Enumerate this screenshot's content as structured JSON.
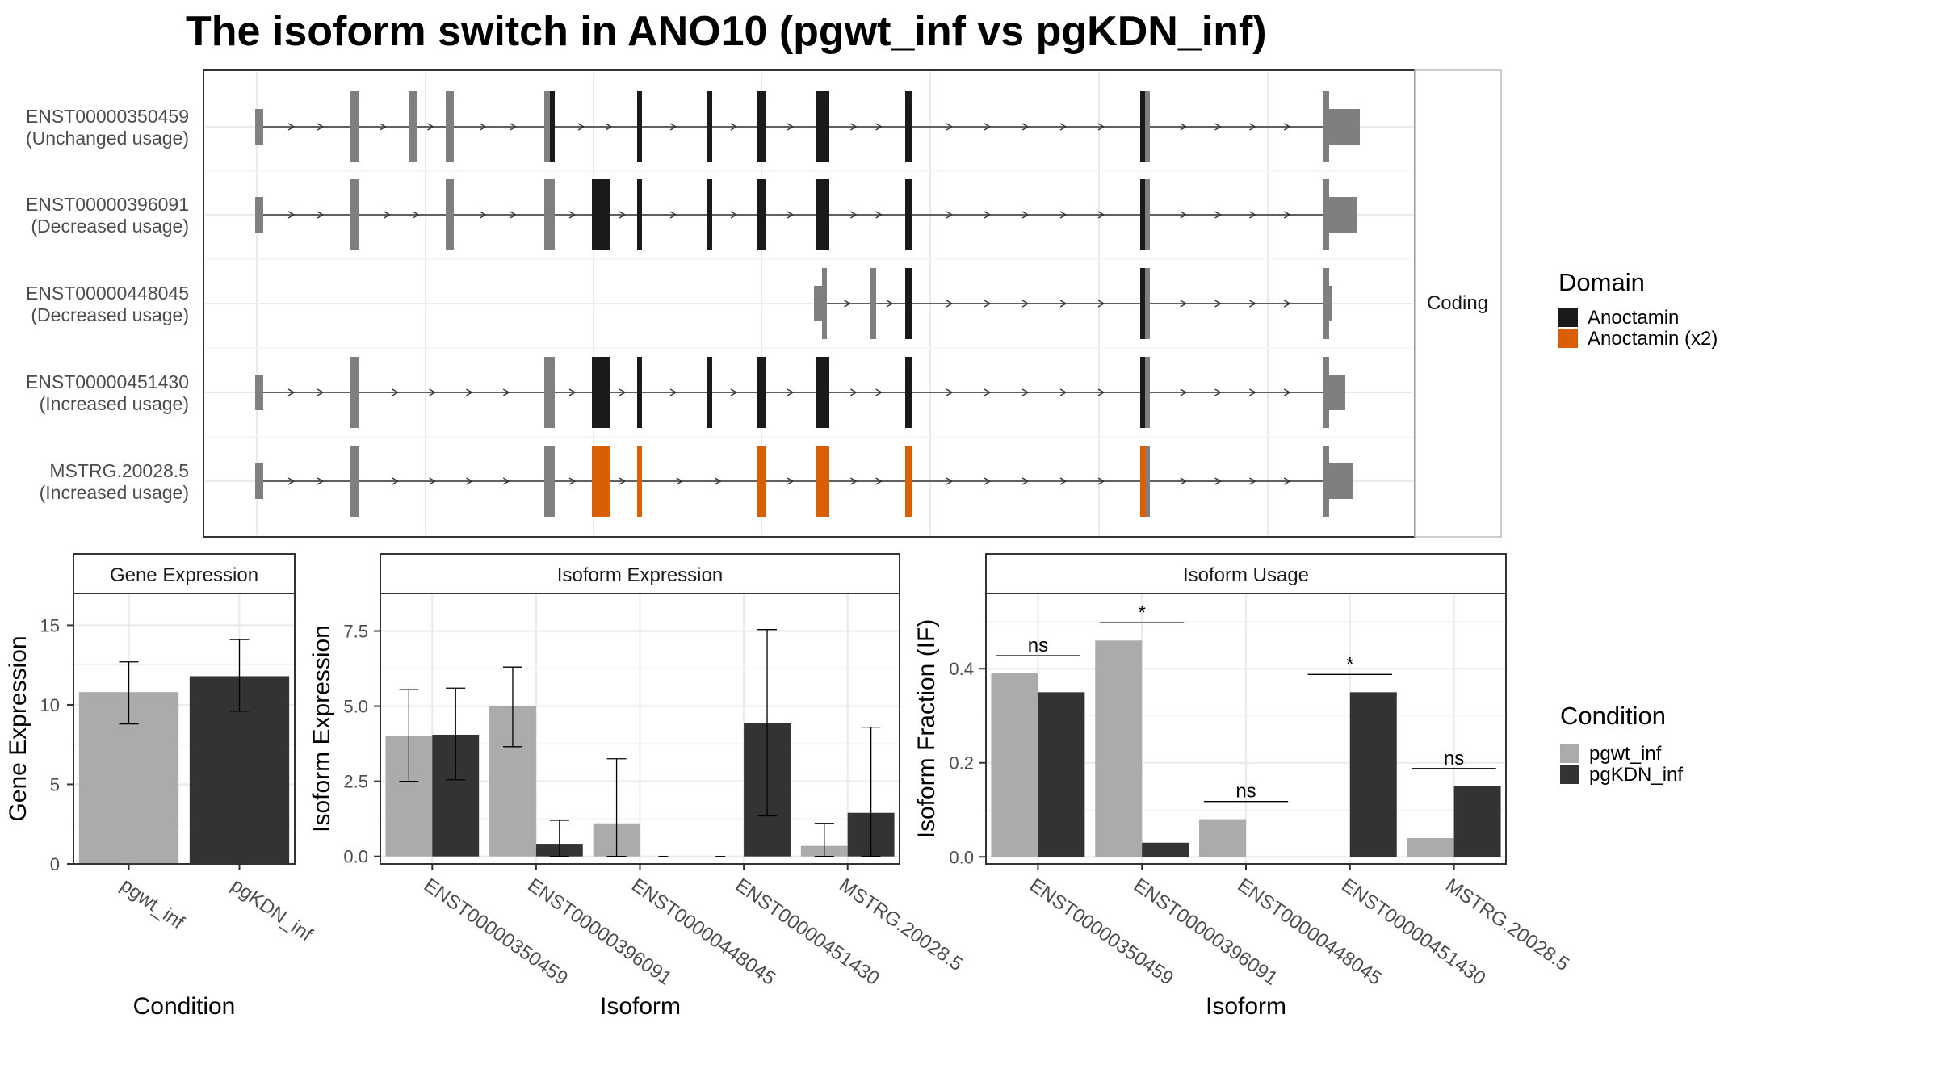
{
  "title": "The isoform switch in ANO10 (pgwt_inf vs pgKDN_inf)",
  "colors": {
    "anoctamin": "#1a1a1a",
    "anoctamin_x2": "#d95f02",
    "utr_grey": "#7f7f7f",
    "pgwt_inf": "#ababab",
    "pgKDN_inf": "#333333",
    "panel_border": "#333333",
    "strip_fill": "#ffffff",
    "grid": "#ebebeb"
  },
  "structure": {
    "strip_label": "Coding",
    "legend_title": "Domain",
    "legend_items": [
      {
        "label": "Anoctamin",
        "color": "#1a1a1a"
      },
      {
        "label": "Anoctamin (x2)",
        "color": "#d95f02"
      }
    ],
    "isoforms": [
      {
        "id": "ENST00000350459",
        "status": "(Unchanged usage)"
      },
      {
        "id": "ENST00000396091",
        "status": "(Decreased usage)"
      },
      {
        "id": "ENST00000448045",
        "status": "(Decreased usage)"
      },
      {
        "id": "ENST00000451430",
        "status": "(Increased usage)"
      },
      {
        "id": "MSTRG.20028.5",
        "status": "(Increased usage)"
      }
    ]
  },
  "condition_legend": {
    "title": "Condition",
    "items": [
      {
        "label": "pgwt_inf",
        "color": "#ababab"
      },
      {
        "label": "pgKDN_inf",
        "color": "#333333"
      }
    ]
  },
  "chart_data": [
    {
      "type": "bar",
      "strip": "Gene Expression",
      "xlabel": "Condition",
      "ylabel": "Gene Expression",
      "categories": [
        "pgwt_inf",
        "pgKDN_inf"
      ],
      "values": [
        10.8,
        11.8
      ],
      "error_low": [
        8.8,
        9.6
      ],
      "error_high": [
        12.7,
        14.1
      ],
      "ylim": [
        0,
        17
      ],
      "yticks": [
        0,
        5,
        10,
        15
      ],
      "ytick_labels": [
        "0",
        "5",
        "10",
        "15"
      ]
    },
    {
      "type": "bar",
      "strip": "Isoform Expression",
      "xlabel": "Isoform",
      "ylabel": "Isoform Expression",
      "categories": [
        "ENST00000350459",
        "ENST00000396091",
        "ENST00000448045",
        "ENST00000451430",
        "MSTRG.20028.5"
      ],
      "series": [
        {
          "name": "pgwt_inf",
          "values": [
            4.0,
            5.0,
            1.1,
            0.0,
            0.35
          ],
          "error_low": [
            2.5,
            3.65,
            0.0,
            0.0,
            0.0
          ],
          "error_high": [
            5.55,
            6.3,
            3.25,
            0.0,
            1.1
          ]
        },
        {
          "name": "pgKDN_inf",
          "values": [
            4.05,
            0.42,
            0.0,
            4.45,
            1.45
          ],
          "error_low": [
            2.55,
            0.0,
            0.0,
            1.35,
            0.0
          ],
          "error_high": [
            5.6,
            1.2,
            0.0,
            7.55,
            4.3
          ]
        }
      ],
      "ylim": [
        -0.25,
        8.75
      ],
      "yticks": [
        0,
        2.5,
        5,
        7.5
      ],
      "ytick_labels": [
        "0.0",
        "2.5",
        "5.0",
        "7.5"
      ]
    },
    {
      "type": "bar",
      "strip": "Isoform Usage",
      "xlabel": "Isoform",
      "ylabel": "Isoform Fraction (IF)",
      "categories": [
        "ENST00000350459",
        "ENST00000396091",
        "ENST00000448045",
        "ENST00000451430",
        "MSTRG.20028.5"
      ],
      "series": [
        {
          "name": "pgwt_inf",
          "values": [
            0.39,
            0.46,
            0.08,
            0.0,
            0.04
          ]
        },
        {
          "name": "pgKDN_inf",
          "values": [
            0.35,
            0.03,
            0.0,
            0.35,
            0.15
          ]
        }
      ],
      "significance": [
        "ns",
        "*",
        "ns",
        "*",
        "ns"
      ],
      "ylim": [
        -0.015,
        0.56
      ],
      "yticks": [
        0,
        0.2,
        0.4
      ],
      "ytick_labels": [
        "0.0",
        "0.2",
        "0.4"
      ]
    }
  ]
}
